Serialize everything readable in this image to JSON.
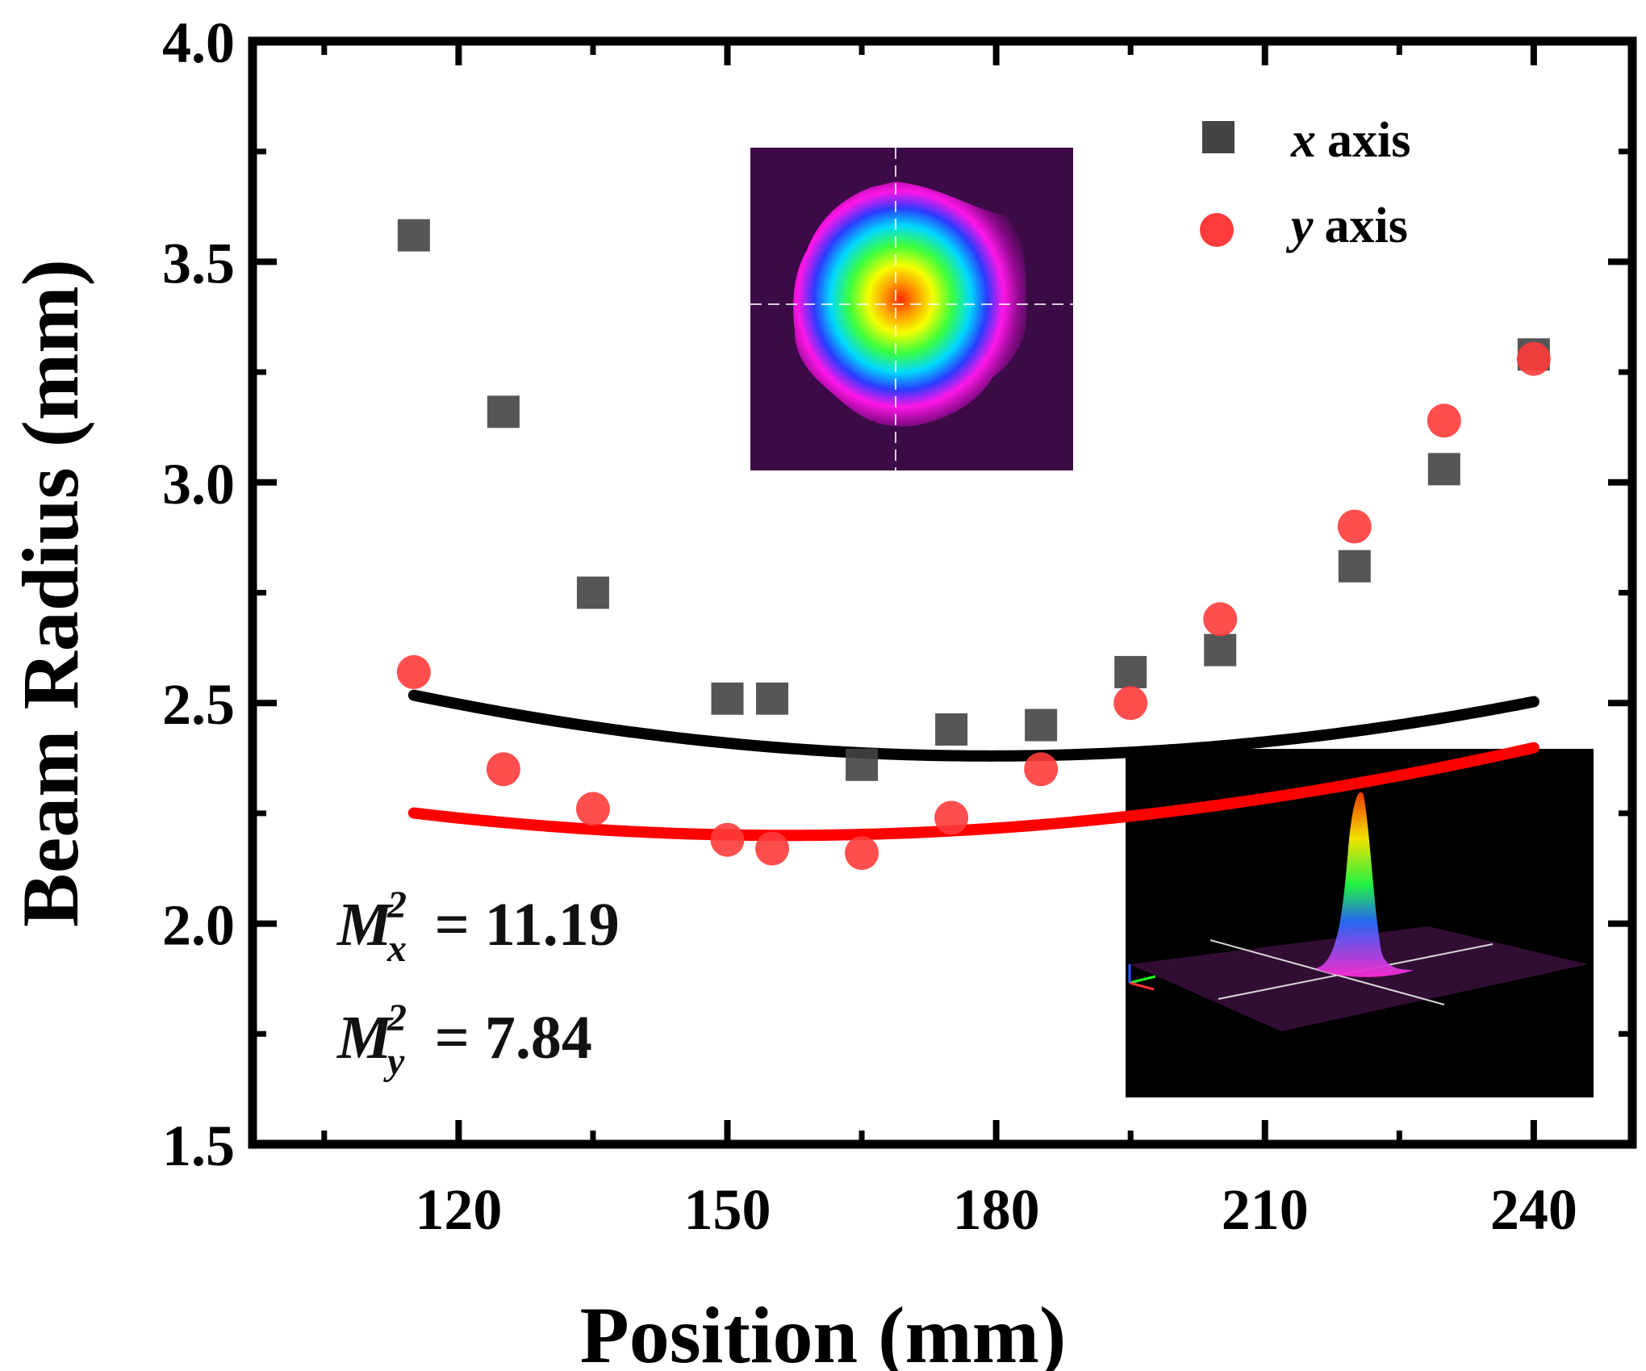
{
  "chart_data": {
    "type": "scatter",
    "xlabel": "Position (mm)",
    "ylabel": "Beam Radius (mm)",
    "xlim": [
      97,
      251
    ],
    "ylim": [
      1.5,
      4.0
    ],
    "xticks": [
      120,
      150,
      180,
      210,
      240
    ],
    "xtick_labels": [
      "120",
      "150",
      "180",
      "210",
      "240"
    ],
    "yticks": [
      1.5,
      2.0,
      2.5,
      3.0,
      3.5,
      4.0
    ],
    "ytick_labels": [
      "1.5",
      "2.0",
      "2.5",
      "3.0",
      "3.5",
      "4.0"
    ],
    "legend_position": "top-right",
    "series": [
      {
        "name": "x axis",
        "name_symbol": "x",
        "name_text": "axis",
        "marker": "square",
        "color": "#444444",
        "fit_color": "#000000",
        "x": [
          115,
          125,
          135,
          150,
          155,
          165,
          175,
          185,
          195,
          205,
          220,
          230,
          240
        ],
        "y": [
          3.56,
          3.16,
          2.75,
          2.51,
          2.51,
          2.36,
          2.44,
          2.45,
          2.57,
          2.62,
          2.81,
          3.03,
          3.29
        ],
        "fit": {
          "x0": 179.3,
          "w0": 2.38,
          "a": 0.000163
        }
      },
      {
        "name": "y axis",
        "name_symbol": "y",
        "name_text": "axis",
        "marker": "circle",
        "color": "#ff3b3b",
        "fit_color": "#ff0000",
        "x": [
          115,
          125,
          135,
          150,
          155,
          165,
          175,
          185,
          195,
          205,
          220,
          230,
          240
        ],
        "y": [
          2.57,
          2.35,
          2.26,
          2.19,
          2.17,
          2.16,
          2.24,
          2.35,
          2.5,
          2.69,
          2.9,
          3.14,
          3.28
        ],
        "fit": {
          "x0": 156.5,
          "w0": 2.2,
          "a": 0.000131
        }
      }
    ],
    "annotations": [
      {
        "label": "M",
        "sup": "2",
        "sub": "x",
        "value": "= 11.19"
      },
      {
        "label": "M",
        "sup": "2",
        "sub": "y",
        "value": "= 7.84"
      }
    ],
    "insets": [
      {
        "name": "beam-profile-2d-inset",
        "description": "2D beam intensity profile"
      },
      {
        "name": "beam-profile-3d-inset",
        "description": "3D beam intensity profile"
      }
    ]
  }
}
